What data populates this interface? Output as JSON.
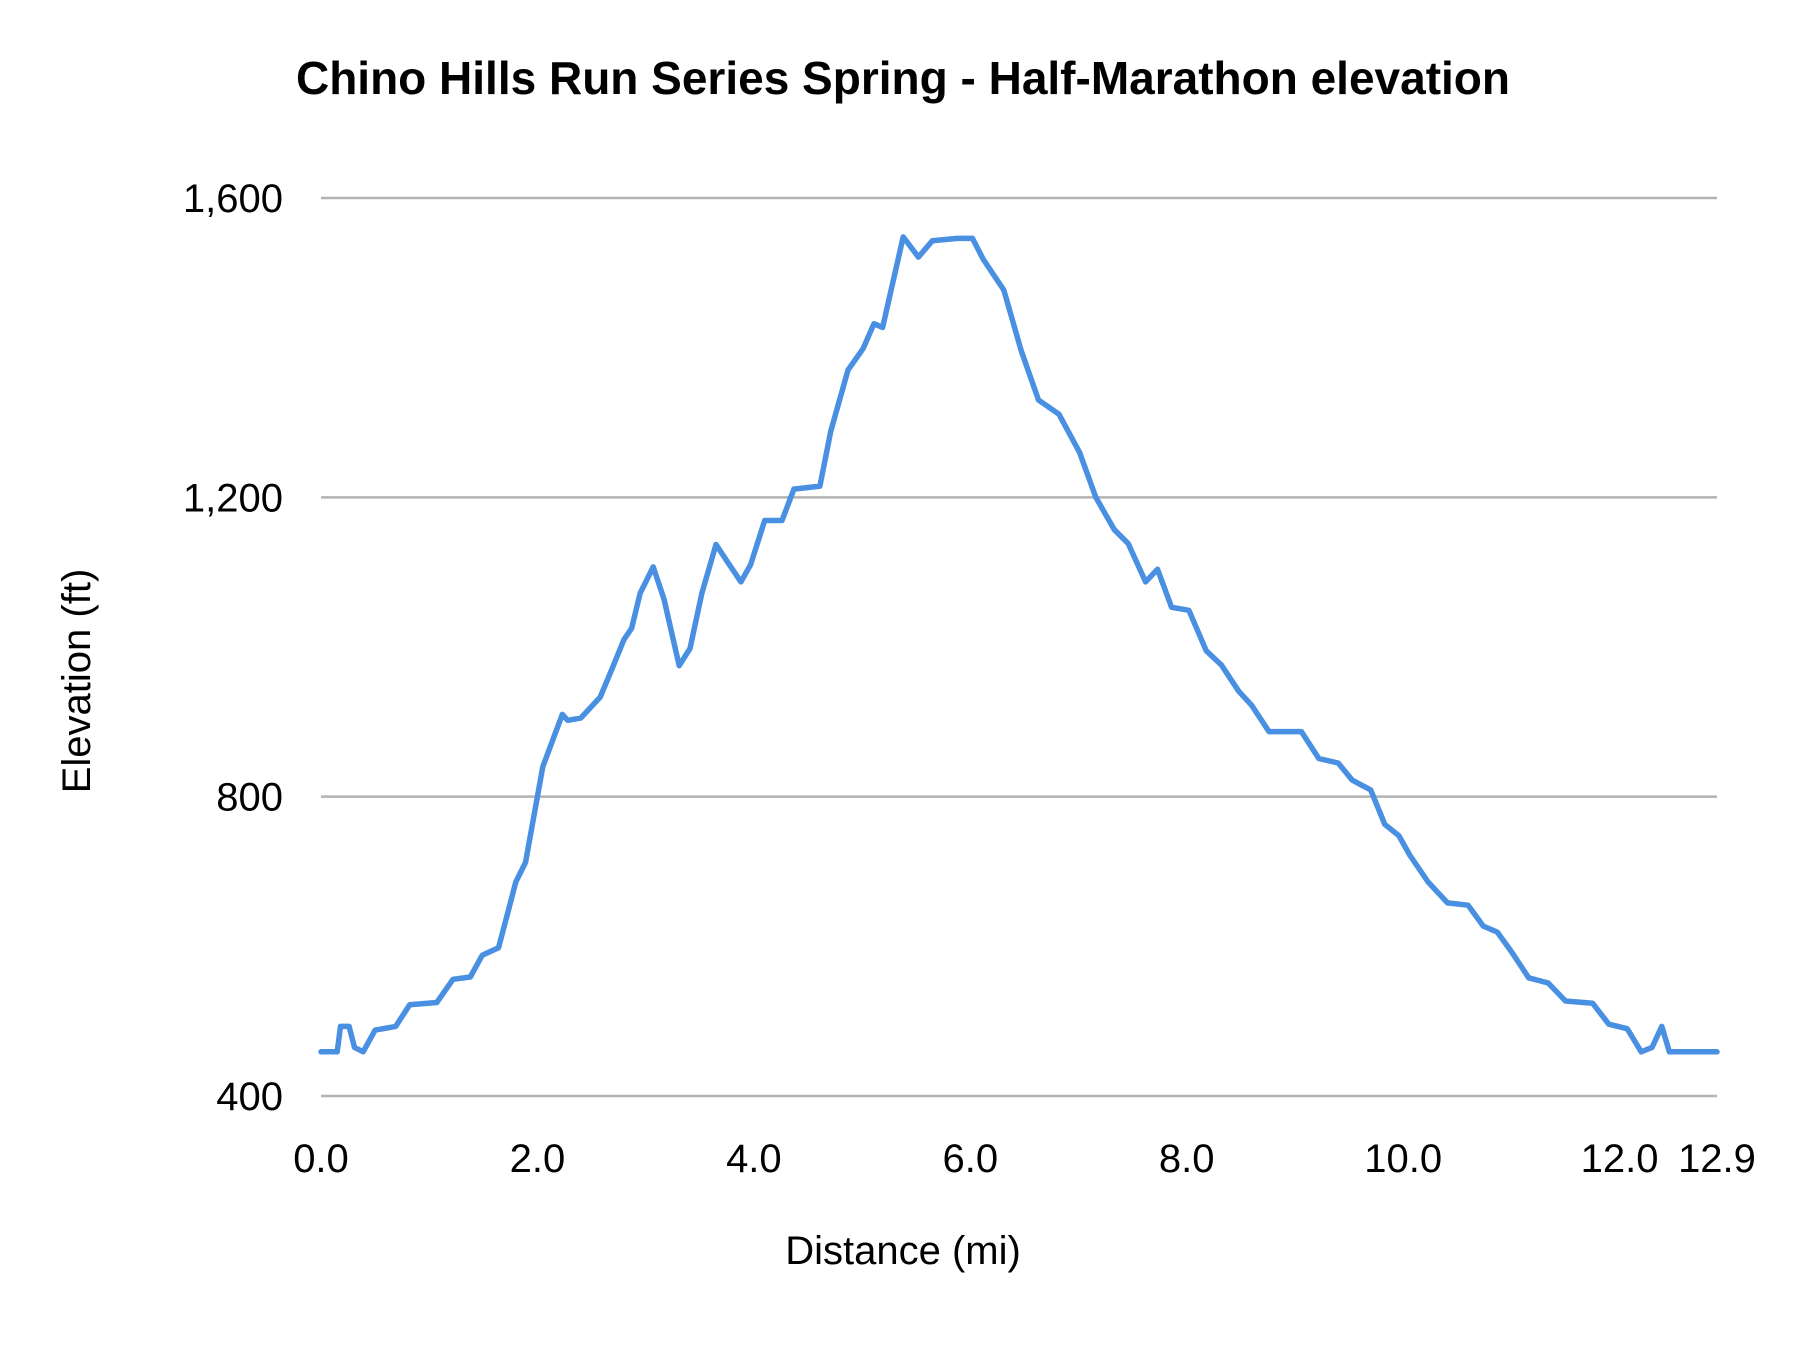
{
  "chart_data": {
    "type": "line",
    "title": "Chino Hills Run Series Spring - Half-Marathon elevation",
    "xlabel": "Distance (mi)",
    "ylabel": "Elevation (ft)",
    "xlim": [
      0,
      12.9
    ],
    "ylim": [
      400,
      1600
    ],
    "x_ticks": [
      "0.0",
      "2.0",
      "4.0",
      "6.0",
      "8.0",
      "10.0",
      "12.0",
      "12.9"
    ],
    "x_tick_values": [
      0,
      2,
      4,
      6,
      8,
      10,
      12,
      12.9
    ],
    "y_ticks": [
      "400",
      "800",
      "1,200",
      "1,600"
    ],
    "y_tick_values": [
      400,
      800,
      1200,
      1600
    ],
    "grid": "horizontal",
    "legend": "none",
    "line_color": "#4a90e2",
    "series": [
      {
        "x": [
          0,
          0.15,
          0.18,
          0.26,
          0.31,
          0.39,
          0.5,
          0.69,
          0.82,
          1.07,
          1.22,
          1.38,
          1.49,
          1.64,
          1.73,
          1.8,
          1.89,
          2.05,
          2.15,
          2.23,
          2.28,
          2.4,
          2.58,
          2.69,
          2.8,
          2.87,
          2.95,
          3.07,
          3.17,
          3.31,
          3.41,
          3.52,
          3.65,
          3.75,
          3.88,
          3.97,
          4.1,
          4.26,
          4.37,
          4.61,
          4.71,
          4.87,
          5.01,
          5.11,
          5.19,
          5.38,
          5.52,
          5.65,
          5.88,
          6.02,
          6.12,
          6.31,
          6.47,
          6.63,
          6.82,
          7.01,
          7.16,
          7.33,
          7.46,
          7.62,
          7.73,
          7.86,
          8.02,
          8.18,
          8.32,
          8.48,
          8.6,
          8.76,
          9.06,
          9.22,
          9.4,
          9.53,
          9.7,
          9.83,
          9.96,
          10.06,
          10.23,
          10.41,
          10.6,
          10.74,
          10.87,
          11.0,
          11.16,
          11.34,
          11.5,
          11.75,
          11.9,
          12.07,
          12.2,
          12.3,
          12.39,
          12.46,
          12.9
        ],
        "y": [
          459,
          459,
          493,
          493,
          465,
          459,
          488,
          493,
          522,
          525,
          556,
          559,
          588,
          598,
          647,
          686,
          712,
          840,
          879,
          910,
          902,
          905,
          933,
          971,
          1010,
          1025,
          1072,
          1107,
          1064,
          975,
          998,
          1072,
          1137,
          1115,
          1087,
          1110,
          1169,
          1169,
          1211,
          1215,
          1288,
          1370,
          1399,
          1432,
          1427,
          1548,
          1521,
          1543,
          1546,
          1546,
          1518,
          1477,
          1396,
          1330,
          1311,
          1260,
          1200,
          1157,
          1138,
          1087,
          1104,
          1053,
          1049,
          995,
          976,
          941,
          922,
          887,
          887,
          851,
          845,
          822,
          809,
          763,
          748,
          722,
          686,
          658,
          655,
          627,
          619,
          593,
          558,
          551,
          527,
          524,
          496,
          490,
          459,
          465,
          493,
          459,
          459
        ]
      }
    ]
  }
}
